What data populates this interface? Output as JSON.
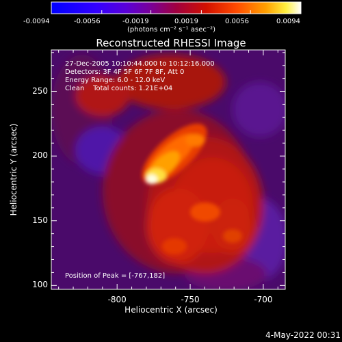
{
  "colorbar": {
    "ticks": [
      "-0.0094",
      "-0.0056",
      "-0.0019",
      "0.0019",
      "0.0056",
      "0.0094"
    ],
    "unit_label": "(photons cm⁻² s⁻¹ asec⁻²)",
    "range": [
      -0.0094,
      0.0094
    ]
  },
  "chart_data": {
    "type": "heatmap",
    "title": "Reconstructed RHESSI Image",
    "xlabel": "Heliocentric X (arcsec)",
    "ylabel": "Heliocentric Y (arcsec)",
    "xlim": [
      -845,
      -685
    ],
    "ylim": [
      97,
      282
    ],
    "x_ticks": [
      "-800",
      "-750",
      "-700"
    ],
    "y_ticks": [
      "100",
      "150",
      "200",
      "250"
    ],
    "x_tick_values": [
      -800,
      -750,
      -700
    ],
    "y_tick_values": [
      100,
      150,
      200,
      250
    ],
    "annotations": {
      "line1": "27-Dec-2005 10:10:44.000 to 10:12:16.000",
      "line2": "Detectors: 3F 4F 5F 6F 7F 8F, Att 0",
      "line3": "Energy Range: 6.0 - 12.0 keV",
      "line4": "Clean    Total counts: 1.21E+04",
      "peak": "Position of Peak = [-767,182]"
    },
    "peak_position": [
      -767,
      182
    ]
  },
  "timestamp": "4-May-2022 00:31"
}
